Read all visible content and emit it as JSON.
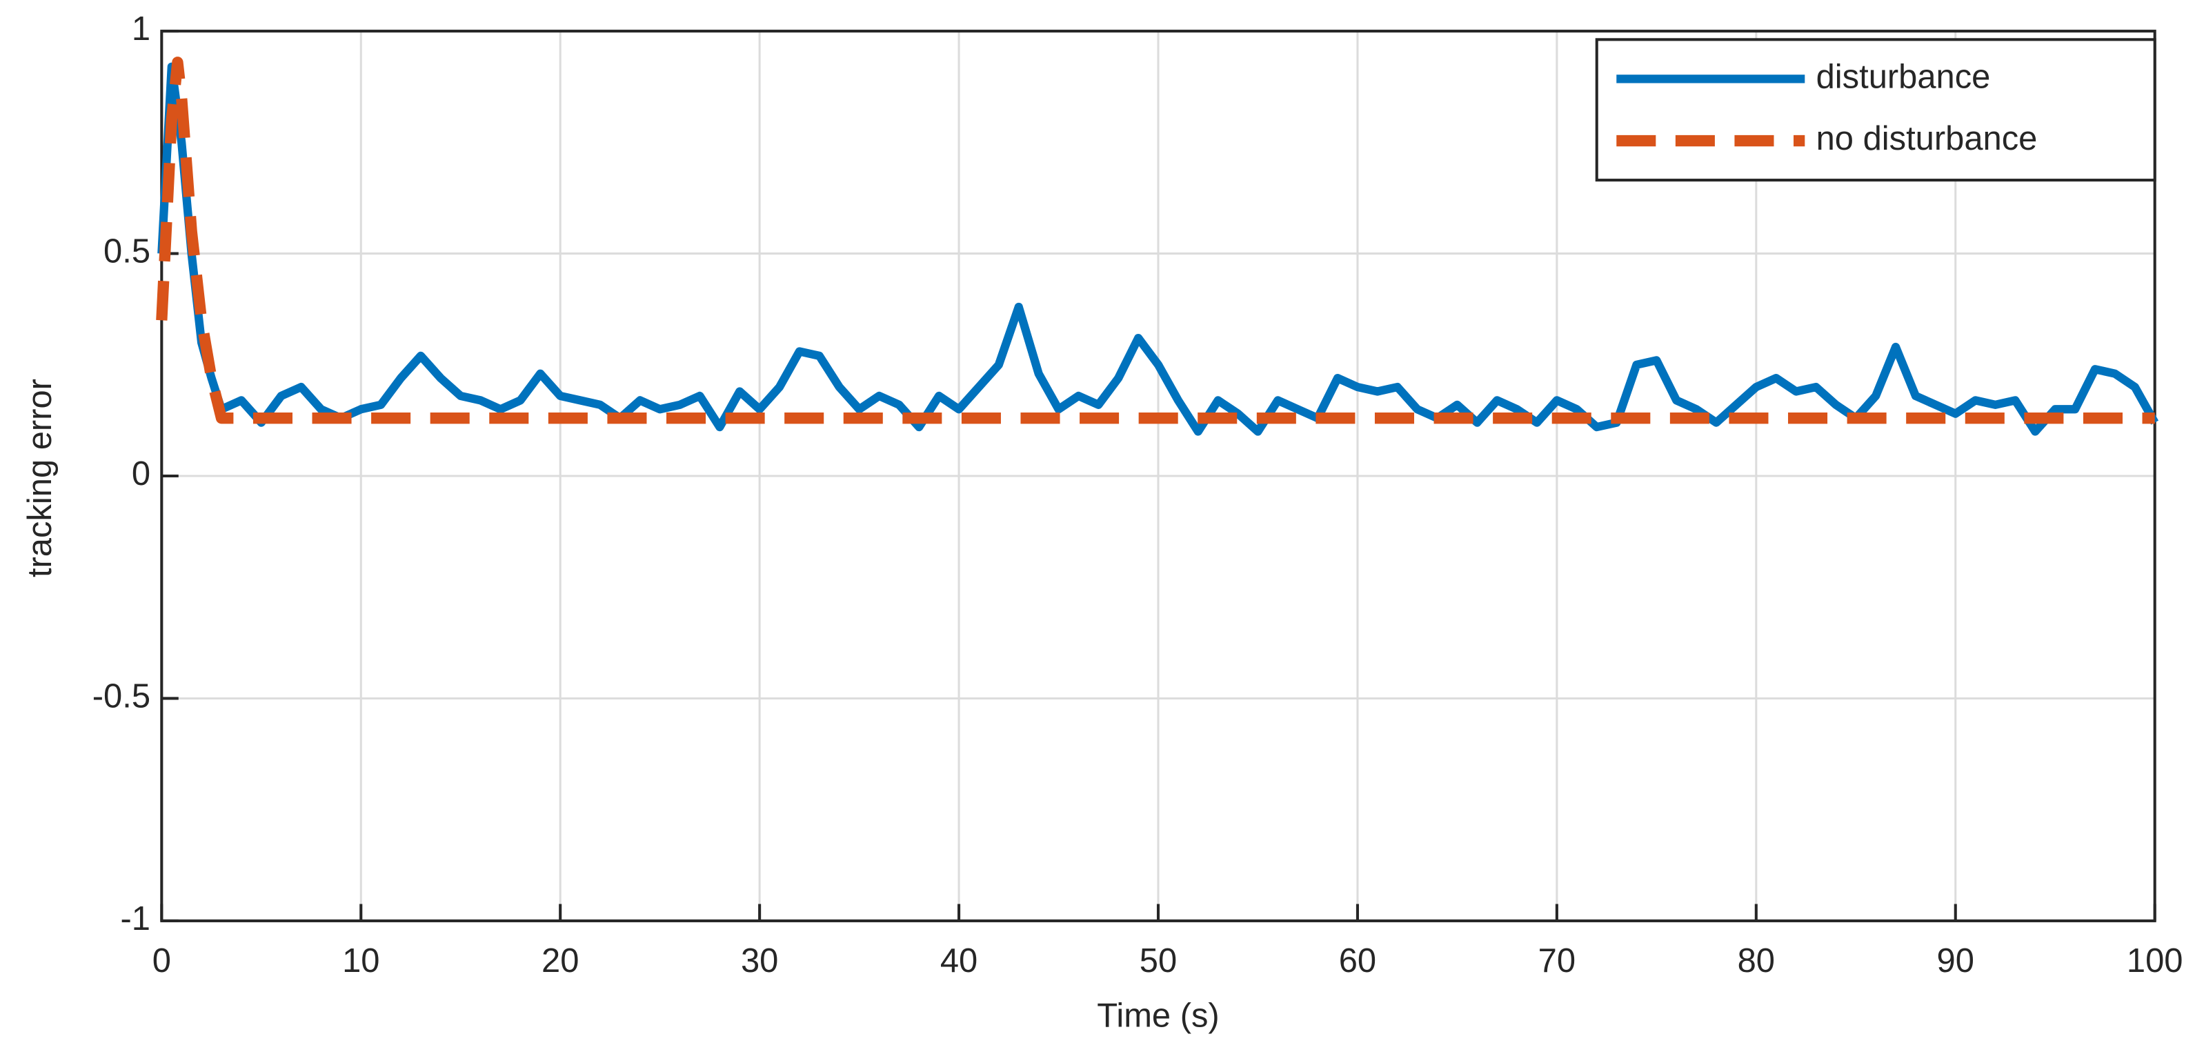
{
  "chart_data": {
    "type": "line",
    "xlabel": "Time (s)",
    "ylabel": "tracking error",
    "xlim": [
      0,
      100
    ],
    "ylim": [
      -1,
      1
    ],
    "xticks": [
      0,
      10,
      20,
      30,
      40,
      50,
      60,
      70,
      80,
      90,
      100
    ],
    "yticks": [
      -1,
      -0.5,
      0,
      0.5,
      1
    ],
    "grid": true,
    "legend": "upper right",
    "series": [
      {
        "name": "disturbance",
        "color": "#0072bd",
        "dash": false,
        "x": [
          0,
          0.5,
          1,
          1.5,
          2,
          2.5,
          3,
          4,
          5,
          6,
          7,
          8,
          9,
          10,
          11,
          12,
          13,
          14,
          15,
          16,
          17,
          18,
          19,
          20,
          21,
          22,
          23,
          24,
          25,
          26,
          27,
          28,
          29,
          30,
          31,
          32,
          33,
          34,
          35,
          36,
          37,
          38,
          39,
          40,
          41,
          42,
          43,
          44,
          45,
          46,
          47,
          48,
          49,
          50,
          51,
          52,
          53,
          54,
          55,
          56,
          57,
          58,
          59,
          60,
          61,
          62,
          63,
          64,
          65,
          66,
          67,
          68,
          69,
          70,
          71,
          72,
          73,
          74,
          75,
          76,
          77,
          78,
          79,
          80,
          81,
          82,
          83,
          84,
          85,
          86,
          87,
          88,
          89,
          90,
          91,
          92,
          93,
          94,
          95,
          96,
          97,
          98,
          99,
          100
        ],
        "values": [
          0.5,
          0.92,
          0.75,
          0.5,
          0.3,
          0.22,
          0.15,
          0.17,
          0.12,
          0.18,
          0.2,
          0.15,
          0.13,
          0.15,
          0.16,
          0.22,
          0.27,
          0.22,
          0.18,
          0.17,
          0.15,
          0.17,
          0.23,
          0.18,
          0.17,
          0.16,
          0.13,
          0.17,
          0.15,
          0.16,
          0.18,
          0.11,
          0.19,
          0.15,
          0.2,
          0.28,
          0.27,
          0.2,
          0.15,
          0.18,
          0.16,
          0.11,
          0.18,
          0.15,
          0.2,
          0.25,
          0.38,
          0.23,
          0.15,
          0.18,
          0.16,
          0.22,
          0.31,
          0.25,
          0.17,
          0.1,
          0.17,
          0.14,
          0.1,
          0.17,
          0.15,
          0.13,
          0.22,
          0.2,
          0.19,
          0.2,
          0.15,
          0.13,
          0.16,
          0.12,
          0.17,
          0.15,
          0.12,
          0.17,
          0.15,
          0.11,
          0.12,
          0.25,
          0.26,
          0.17,
          0.15,
          0.12,
          0.16,
          0.2,
          0.22,
          0.19,
          0.2,
          0.16,
          0.13,
          0.18,
          0.29,
          0.18,
          0.16,
          0.14,
          0.17,
          0.16,
          0.17,
          0.1,
          0.15,
          0.15,
          0.24,
          0.23,
          0.2,
          0.12
        ]
      },
      {
        "name": "no disturbance",
        "color": "#d95319",
        "dash": true,
        "x": [
          0,
          0.5,
          0.8,
          1,
          1.5,
          2,
          2.5,
          3,
          100
        ],
        "values": [
          0.35,
          0.8,
          0.93,
          0.85,
          0.55,
          0.35,
          0.22,
          0.13,
          0.13
        ]
      }
    ]
  }
}
